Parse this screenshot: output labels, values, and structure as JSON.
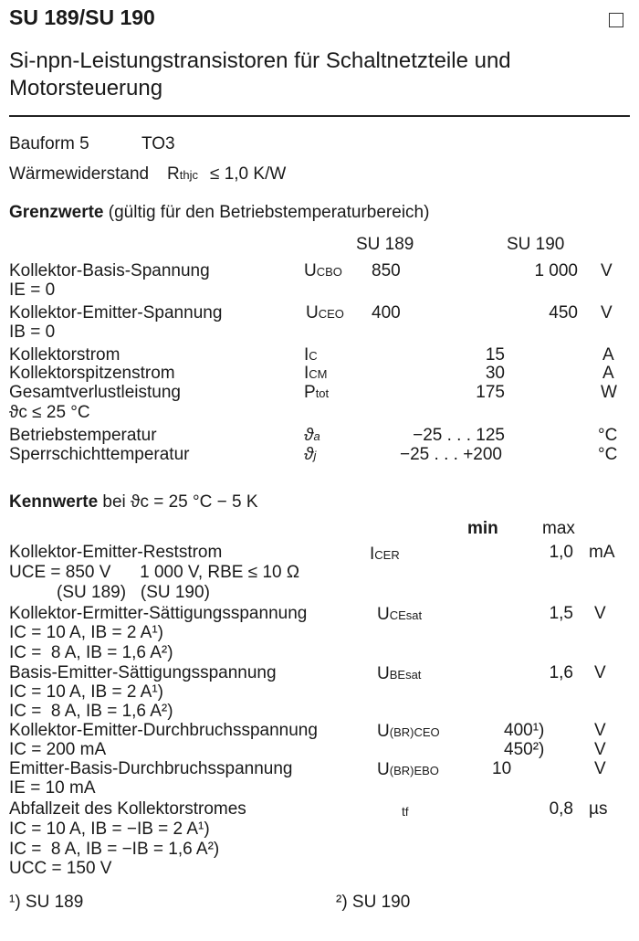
{
  "header": {
    "title": "SU 189/SU 190",
    "subtitle_1": "Si-npn-Leistungstransistoren für Schaltnetzteile und",
    "subtitle_2": "Motorsteuerung"
  },
  "bauform": {
    "label": "Bauform 5",
    "value": "TO3"
  },
  "waerme": {
    "label": "Wärmewiderstand",
    "sym": "R",
    "sub": "thjc",
    "value": "≤ 1,0 K/W"
  },
  "grenz": {
    "heading": "Grenzwerte",
    "heading_note": "(gültig für den Betriebstemperaturbereich)",
    "col_1": "SU 189",
    "col_2": "SU 190",
    "rows": [
      {
        "label": "Kollektor-Basis-Spannung",
        "sym": "U",
        "sub": "CBO",
        "v1": "850",
        "v2": "1 000",
        "unit": "V",
        "cond": "IE = 0"
      },
      {
        "label": "Kollektor-Emitter-Spannung",
        "sym": "U",
        "sub": "CEO",
        "v1": "400",
        "v2": "450",
        "unit": "V",
        "cond": "IB = 0"
      },
      {
        "label": "Kollektorstrom",
        "sym": "I",
        "sub": "C",
        "v": "15",
        "unit": "A"
      },
      {
        "label": "Kollektorspitzenstrom",
        "sym": "I",
        "sub": "CM",
        "v": "30",
        "unit": "A"
      },
      {
        "label": "Gesamtverlustleistung",
        "sym": "P",
        "sub": "tot",
        "v": "175",
        "unit": "W",
        "cond": "ϑc ≤ 25 °C"
      },
      {
        "label": "Betriebstemperatur",
        "sym": "ϑ",
        "sub": "a",
        "v": "−25 . . . 125",
        "unit": "°C"
      },
      {
        "label": "Sperrschichttemperatur",
        "sym": "ϑ",
        "sub": "j",
        "v": "−25 . . . +200",
        "unit": "°C"
      }
    ]
  },
  "kenn": {
    "heading": "Kennwerte",
    "heading_note": "bei ϑc = 25 °C − 5 K",
    "col_min": "min",
    "col_max": "max",
    "rows": [
      {
        "label": "Kollektor-Emitter-Reststrom",
        "sym": "I",
        "sub": "CER",
        "max": "1,0",
        "unit": "mA",
        "cond_1": "UCE = 850 V      1 000 V, RBE ≤ 10 Ω",
        "cond_2": "(SU 189)   (SU 190)"
      },
      {
        "label": "Kollektor-Ermitter-Sättigungsspannung",
        "sym": "U",
        "sub": "CEsat",
        "max": "1,5",
        "unit": "V",
        "cond_1": "IC = 10 A, IB = 2 A¹)",
        "cond_2": "IC =  8 A, IB = 1,6 A²)"
      },
      {
        "label": "Basis-Emitter-Sättigungsspannung",
        "sym": "U",
        "sub": "BEsat",
        "max": "1,6",
        "unit": "V",
        "cond_1": "IC = 10 A, IB = 2 A¹)",
        "cond_2": "IC =  8 A, IB = 1,6 A²)"
      },
      {
        "label": "Kollektor-Emitter-Durchbruchsspannung",
        "sym": "U",
        "sub": "(BR)CEO",
        "min_1": "400¹)",
        "unit_1": "V",
        "min_2": "450²)",
        "unit_2": "V",
        "cond_1": "IC = 200 mA"
      },
      {
        "label": "Emitter-Basis-Durchbruchsspannung",
        "sym": "U",
        "sub": "(BR)EBO",
        "min": "10",
        "unit": "V",
        "cond_1": "IE = 10 mA"
      },
      {
        "label": "Abfallzeit des Kollektorstromes",
        "sym": "t",
        "sub": "f",
        "max": "0,8",
        "unit": "µs",
        "cond_1": "IC = 10 A, IB = −IB = 2 A¹)",
        "cond_2": "IC =  8 A, IB = −IB = 1,6 A²)",
        "cond_3": "UCC = 150 V"
      }
    ]
  },
  "footnotes": {
    "f1": "¹) SU 189",
    "f2": "²) SU 190"
  }
}
